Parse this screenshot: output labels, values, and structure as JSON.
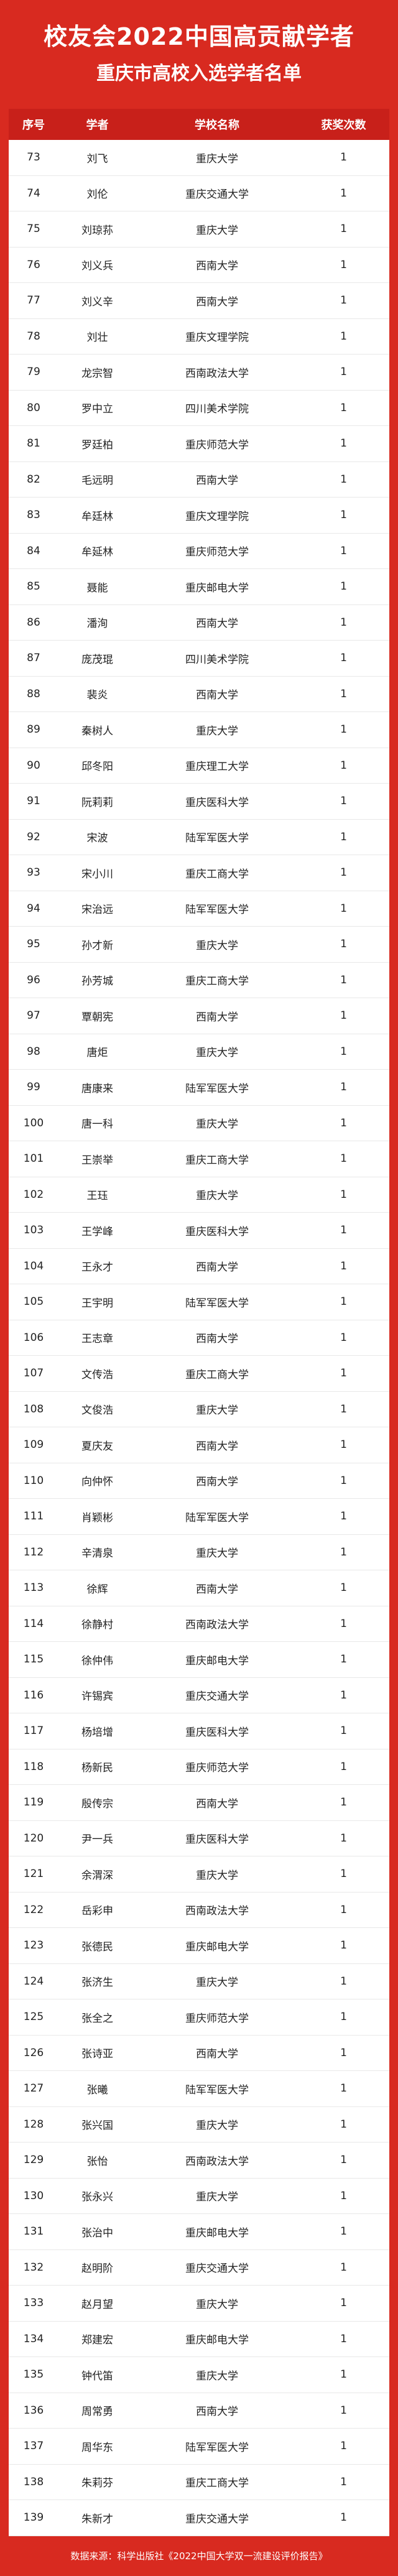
{
  "header": {
    "title": "校友会2022中国高贡献学者",
    "subtitle": "重庆市高校入选学者名单"
  },
  "table": {
    "columns": [
      "序号",
      "学者",
      "学校名称",
      "获奖次数"
    ],
    "rows": [
      [
        73,
        "刘飞",
        "重庆大学",
        1
      ],
      [
        74,
        "刘伦",
        "重庆交通大学",
        1
      ],
      [
        75,
        "刘琼荪",
        "重庆大学",
        1
      ],
      [
        76,
        "刘义兵",
        "西南大学",
        1
      ],
      [
        77,
        "刘义辛",
        "西南大学",
        1
      ],
      [
        78,
        "刘壮",
        "重庆文理学院",
        1
      ],
      [
        79,
        "龙宗智",
        "西南政法大学",
        1
      ],
      [
        80,
        "罗中立",
        "四川美术学院",
        1
      ],
      [
        81,
        "罗廷柏",
        "重庆师范大学",
        1
      ],
      [
        82,
        "毛远明",
        "西南大学",
        1
      ],
      [
        83,
        "牟廷林",
        "重庆文理学院",
        1
      ],
      [
        84,
        "牟延林",
        "重庆师范大学",
        1
      ],
      [
        85,
        "聂能",
        "重庆邮电大学",
        1
      ],
      [
        86,
        "潘洵",
        "西南大学",
        1
      ],
      [
        87,
        "庞茂琨",
        "四川美术学院",
        1
      ],
      [
        88,
        "裴炎",
        "西南大学",
        1
      ],
      [
        89,
        "秦树人",
        "重庆大学",
        1
      ],
      [
        90,
        "邱冬阳",
        "重庆理工大学",
        1
      ],
      [
        91,
        "阮莉莉",
        "重庆医科大学",
        1
      ],
      [
        92,
        "宋波",
        "陆军军医大学",
        1
      ],
      [
        93,
        "宋小川",
        "重庆工商大学",
        1
      ],
      [
        94,
        "宋治远",
        "陆军军医大学",
        1
      ],
      [
        95,
        "孙才新",
        "重庆大学",
        1
      ],
      [
        96,
        "孙芳城",
        "重庆工商大学",
        1
      ],
      [
        97,
        "覃朝宪",
        "西南大学",
        1
      ],
      [
        98,
        "唐炬",
        "重庆大学",
        1
      ],
      [
        99,
        "唐康来",
        "陆军军医大学",
        1
      ],
      [
        100,
        "唐一科",
        "重庆大学",
        1
      ],
      [
        101,
        "王崇举",
        "重庆工商大学",
        1
      ],
      [
        102,
        "王珏",
        "重庆大学",
        1
      ],
      [
        103,
        "王学峰",
        "重庆医科大学",
        1
      ],
      [
        104,
        "王永才",
        "西南大学",
        1
      ],
      [
        105,
        "王宇明",
        "陆军军医大学",
        1
      ],
      [
        106,
        "王志章",
        "西南大学",
        1
      ],
      [
        107,
        "文传浩",
        "重庆工商大学",
        1
      ],
      [
        108,
        "文俊浩",
        "重庆大学",
        1
      ],
      [
        109,
        "夏庆友",
        "西南大学",
        1
      ],
      [
        110,
        "向仲怀",
        "西南大学",
        1
      ],
      [
        111,
        "肖颖彬",
        "陆军军医大学",
        1
      ],
      [
        112,
        "辛清泉",
        "重庆大学",
        1
      ],
      [
        113,
        "徐辉",
        "西南大学",
        1
      ],
      [
        114,
        "徐静村",
        "西南政法大学",
        1
      ],
      [
        115,
        "徐仲伟",
        "重庆邮电大学",
        1
      ],
      [
        116,
        "许锡宾",
        "重庆交通大学",
        1
      ],
      [
        117,
        "杨培增",
        "重庆医科大学",
        1
      ],
      [
        118,
        "杨新民",
        "重庆师范大学",
        1
      ],
      [
        119,
        "殷传宗",
        "西南大学",
        1
      ],
      [
        120,
        "尹一兵",
        "重庆医科大学",
        1
      ],
      [
        121,
        "余渭深",
        "重庆大学",
        1
      ],
      [
        122,
        "岳彩申",
        "西南政法大学",
        1
      ],
      [
        123,
        "张德民",
        "重庆邮电大学",
        1
      ],
      [
        124,
        "张济生",
        "重庆大学",
        1
      ],
      [
        125,
        "张全之",
        "重庆师范大学",
        1
      ],
      [
        126,
        "张诗亚",
        "西南大学",
        1
      ],
      [
        127,
        "张曦",
        "陆军军医大学",
        1
      ],
      [
        128,
        "张兴国",
        "重庆大学",
        1
      ],
      [
        129,
        "张怡",
        "西南政法大学",
        1
      ],
      [
        130,
        "张永兴",
        "重庆大学",
        1
      ],
      [
        131,
        "张治中",
        "重庆邮电大学",
        1
      ],
      [
        132,
        "赵明阶",
        "重庆交通大学",
        1
      ],
      [
        133,
        "赵月望",
        "重庆大学",
        1
      ],
      [
        134,
        "郑建宏",
        "重庆邮电大学",
        1
      ],
      [
        135,
        "钟代笛",
        "重庆大学",
        1
      ],
      [
        136,
        "周常勇",
        "西南大学",
        1
      ],
      [
        137,
        "周华东",
        "陆军军医大学",
        1
      ],
      [
        138,
        "朱莉芬",
        "重庆工商大学",
        1
      ],
      [
        139,
        "朱新才",
        "重庆交通大学",
        1
      ]
    ]
  },
  "footer": "数据来源：科学出版社《2022中国大学双一流建设评价报告》"
}
